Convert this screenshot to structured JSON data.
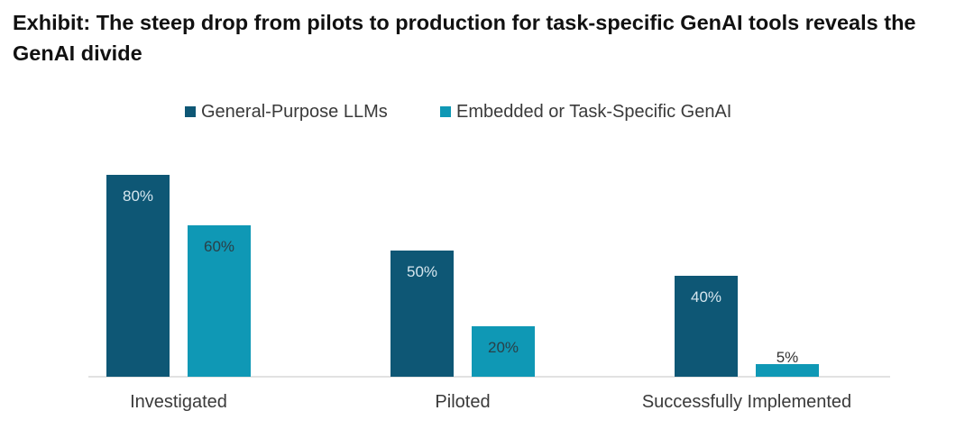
{
  "title": "Exhibit: The steep drop from pilots to production for task-specific GenAI tools reveals the GenAI divide",
  "chart_data": {
    "type": "bar",
    "title": "Exhibit: The steep drop from pilots to production for task-specific GenAI tools reveals the GenAI divide",
    "categories": [
      "Investigated",
      "Piloted",
      "Successfully Implemented"
    ],
    "series": [
      {
        "name": "General-Purpose LLMs",
        "values": [
          80,
          50,
          40
        ],
        "labels": [
          "80%",
          "50%",
          "40%"
        ],
        "color": "#0e5775"
      },
      {
        "name": "Embedded or Task-Specific GenAI",
        "values": [
          60,
          20,
          5
        ],
        "labels": [
          "60%",
          "20%",
          "5%"
        ],
        "color": "#0f98b5"
      }
    ],
    "ylim": [
      0,
      100
    ],
    "grid": false,
    "legend_position": "top-center",
    "label_colors": {
      "inside_dark": "#d6e6ee",
      "inside_light": "#2a3f47",
      "outside": "#333333"
    },
    "axis_color": "#d9d9d9"
  }
}
